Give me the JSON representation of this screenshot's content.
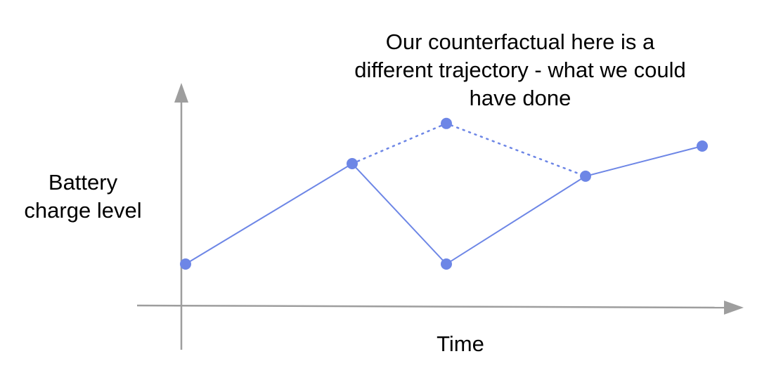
{
  "annotation": {
    "lines": [
      "Our counterfactual here is a",
      "different trajectory - what we could",
      "have done"
    ]
  },
  "axes": {
    "y_label_lines": [
      "Battery",
      "charge level"
    ],
    "x_label": "Time"
  },
  "colors": {
    "axis": "#9e9e9e",
    "trajectory": "#6d86e6",
    "text": "#000000"
  },
  "trajectory": {
    "actual": [
      {
        "t": 0,
        "level": 1.0
      },
      {
        "t": 1,
        "level": 5.0
      },
      {
        "t": 2,
        "level": 1.0
      },
      {
        "t": 3,
        "level": 4.5
      },
      {
        "t": 4,
        "level": 5.7
      }
    ],
    "counterfactual": [
      {
        "t": 1,
        "level": 5.0
      },
      {
        "t": 2,
        "level": 6.6
      },
      {
        "t": 3,
        "level": 4.5
      }
    ]
  }
}
